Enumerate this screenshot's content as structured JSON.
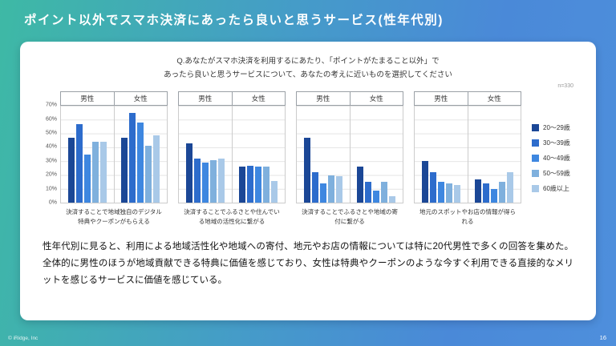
{
  "slide": {
    "title": "ポイント以外でスマホ決済にあったら良いと思うサービス(性年代別)",
    "question_line1": "Q.あなたがスマホ決済を利用するにあたり、「ポイントがたまること以外」で",
    "question_line2": "あったら良いと思うサービスについて、あなたの考えに近いものを選択してください",
    "sample_size": "n=330",
    "summary": "性年代別に見ると、利用による地域活性化や地域への寄付、地元やお店の情報については特に20代男性で多くの回答を集めた。全体的に男性のほうが地域貢献できる特典に価値を感じており、女性は特典やクーポンのような今すぐ利用できる直接的なメリットを感じるサービスに価値を感じている。",
    "footer_left": "© iRidge, Inc",
    "page_number": "16"
  },
  "chart_data": {
    "type": "bar",
    "ylim": [
      0,
      70
    ],
    "yticks": [
      "70%",
      "60%",
      "50%",
      "40%",
      "30%",
      "20%",
      "10%",
      "0%"
    ],
    "group_labels": [
      "男性",
      "女性"
    ],
    "age_groups": [
      "20〜29歳",
      "30〜39歳",
      "40〜49歳",
      "50〜59歳",
      "60歳以上"
    ],
    "colors": [
      "#1b4796",
      "#2d6ccc",
      "#3e87e0",
      "#7fb0dd",
      "#a9c9e8"
    ],
    "legend_position": "right",
    "grid": true,
    "charts": [
      {
        "category": "決済することで地域独自のデジタル特典やクーポンがもらえる",
        "male": [
          47,
          57,
          35,
          44,
          44
        ],
        "female": [
          47,
          65,
          58,
          41,
          49
        ]
      },
      {
        "category": "決済することでふるさとや住んでいる地域の活性化に繋がる",
        "male": [
          43,
          32,
          29,
          31,
          32
        ],
        "female": [
          26,
          27,
          26,
          26,
          16
        ]
      },
      {
        "category": "決済することでふるさとや地域の寄付に繋がる",
        "male": [
          47,
          22,
          14,
          20,
          19
        ],
        "female": [
          26,
          15,
          9,
          15,
          5
        ]
      },
      {
        "category": "地元のスポットやお店の情報が得られる",
        "male": [
          30,
          22,
          15,
          14,
          13
        ],
        "female": [
          17,
          14,
          10,
          15,
          22
        ]
      }
    ]
  }
}
